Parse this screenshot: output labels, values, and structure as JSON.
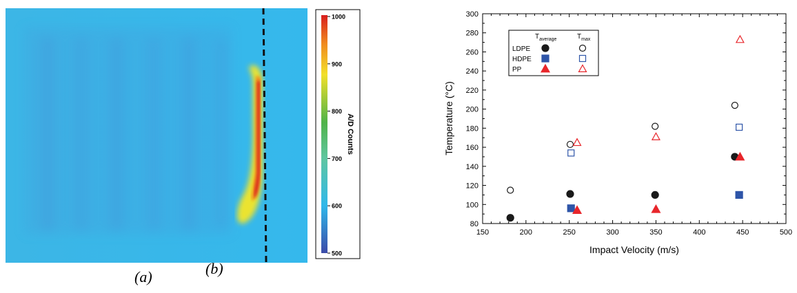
{
  "captions": {
    "a": "(a)",
    "b": "(b)"
  },
  "chart_data": [
    {
      "type": "heatmap",
      "title": "",
      "colorbar": {
        "label": "A/D Counts",
        "range": [
          500,
          1000
        ],
        "ticks": [
          "500",
          "600",
          "700",
          "800",
          "900",
          "1000"
        ]
      },
      "colors": {
        "background": "#2fb8ea",
        "stripes": "#4a8fd8",
        "hot_core": "#d81e1e",
        "hot_edge": "#f5e628"
      }
    },
    {
      "type": "scatter",
      "xlabel": "Impact Velocity (m/s)",
      "ylabel": "Temperature (°C)",
      "xlim": [
        150,
        500
      ],
      "ylim": [
        80,
        300
      ],
      "xticks": [
        "150",
        "200",
        "250",
        "300",
        "350",
        "400",
        "450",
        "500"
      ],
      "yticks": [
        "80",
        "100",
        "120",
        "140",
        "160",
        "180",
        "200",
        "220",
        "240",
        "260",
        "280",
        "300"
      ],
      "grid": false,
      "legend": {
        "placement": "top-left",
        "col1_main": "T",
        "col1_sub": "average",
        "col2_main": "T",
        "col2_sub": "max",
        "rows": [
          "LDPE",
          "HDPE",
          "PP"
        ]
      },
      "series": [
        {
          "name": "LDPE",
          "stat": "average",
          "marker": "circle",
          "filled": true,
          "color": "#1a1a1a",
          "points": [
            [
              182,
              86
            ],
            [
              251,
              111
            ],
            [
              349,
              110
            ],
            [
              441,
              150
            ]
          ]
        },
        {
          "name": "LDPE",
          "stat": "max",
          "marker": "circle",
          "filled": false,
          "color": "#1a1a1a",
          "points": [
            [
              182,
              115
            ],
            [
              251,
              163
            ],
            [
              349,
              182
            ],
            [
              441,
              204
            ]
          ]
        },
        {
          "name": "HDPE",
          "stat": "average",
          "marker": "square",
          "filled": true,
          "color": "#2e55a8",
          "points": [
            [
              252,
              96
            ],
            [
              446,
              110
            ]
          ]
        },
        {
          "name": "HDPE",
          "stat": "max",
          "marker": "square",
          "filled": false,
          "color": "#2e55a8",
          "points": [
            [
              252,
              154
            ],
            [
              446,
              181
            ]
          ]
        },
        {
          "name": "PP",
          "stat": "average",
          "marker": "triangle",
          "filled": true,
          "color": "#e8262b",
          "points": [
            [
              259,
              94
            ],
            [
              350,
              95
            ],
            [
              447,
              150
            ]
          ]
        },
        {
          "name": "PP",
          "stat": "max",
          "marker": "triangle",
          "filled": false,
          "color": "#e8262b",
          "points": [
            [
              259,
              165
            ],
            [
              350,
              171
            ],
            [
              447,
              273
            ]
          ]
        }
      ]
    }
  ]
}
